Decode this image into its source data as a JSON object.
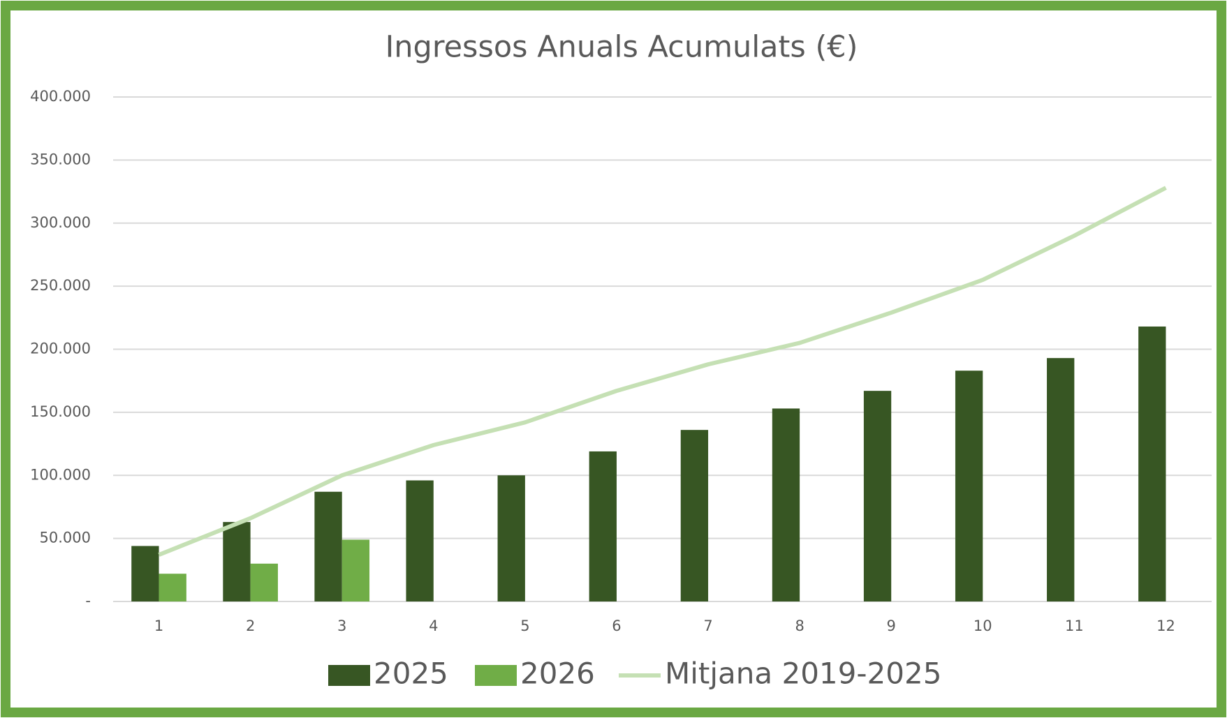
{
  "chart_data": {
    "type": "bar",
    "title": "Ingressos Anuals Acumulats (€)",
    "categories": [
      "1",
      "2",
      "3",
      "4",
      "5",
      "6",
      "7",
      "8",
      "9",
      "10",
      "11",
      "12"
    ],
    "series": [
      {
        "name": "2025",
        "color": "#375623",
        "values": [
          44000,
          63000,
          87000,
          96000,
          100000,
          119000,
          136000,
          153000,
          167000,
          183000,
          193000,
          218000
        ]
      },
      {
        "name": "2026",
        "color": "#70ad47",
        "values": [
          22000,
          30000,
          49000,
          null,
          null,
          null,
          null,
          null,
          null,
          null,
          null,
          null
        ]
      },
      {
        "name": "Mitjana 2019-2025",
        "color": "#c5e0b4",
        "type": "line",
        "values": [
          37000,
          66000,
          100000,
          124000,
          142000,
          167000,
          188000,
          205000,
          229000,
          255000,
          290000,
          328000
        ]
      }
    ],
    "ylim": [
      0,
      400000
    ],
    "yticks": [
      {
        "value": 0,
        "label": "-"
      },
      {
        "value": 50000,
        "label": "50.000"
      },
      {
        "value": 100000,
        "label": "100.000"
      },
      {
        "value": 150000,
        "label": "150.000"
      },
      {
        "value": 200000,
        "label": "200.000"
      },
      {
        "value": 250000,
        "label": "250.000"
      },
      {
        "value": 300000,
        "label": "300.000"
      },
      {
        "value": 350000,
        "label": "350.000"
      },
      {
        "value": 400000,
        "label": "400.000"
      }
    ],
    "grid": true,
    "legend": "bottom"
  }
}
